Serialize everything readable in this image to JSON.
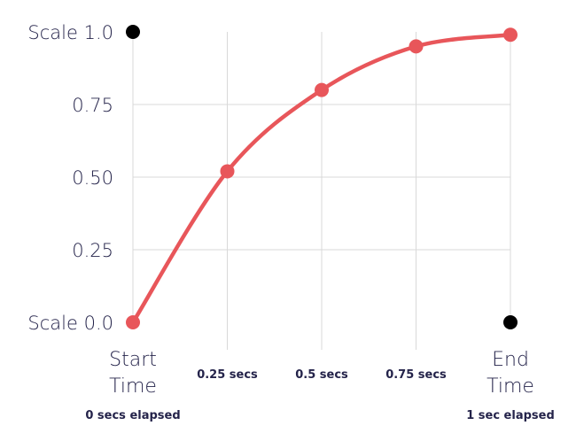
{
  "chart_data": {
    "type": "line",
    "x": [
      0,
      0.25,
      0.5,
      0.75,
      1.0
    ],
    "series": [
      {
        "values": [
          0.0,
          0.52,
          0.8,
          0.95,
          0.99
        ]
      }
    ],
    "y_ticks": [
      {
        "value": 1.0,
        "label": "Scale 1.0"
      },
      {
        "value": 0.75,
        "label": "0.75"
      },
      {
        "value": 0.5,
        "label": "0.50"
      },
      {
        "value": 0.25,
        "label": "0.25"
      },
      {
        "value": 0.0,
        "label": "Scale 0.0"
      }
    ],
    "x_ticks": [
      {
        "value": 0,
        "lines": [
          "Start",
          "Time"
        ],
        "sub": "0 secs elapsed"
      },
      {
        "value": 0.25,
        "lines": [
          "0.25 secs"
        ],
        "sub": ""
      },
      {
        "value": 0.5,
        "lines": [
          "0.5 secs"
        ],
        "sub": ""
      },
      {
        "value": 0.75,
        "lines": [
          "0.75 secs"
        ],
        "sub": ""
      },
      {
        "value": 1.0,
        "lines": [
          "End",
          "Time"
        ],
        "sub": "1 sec elapsed"
      }
    ],
    "reference_points": [
      {
        "x": 0,
        "y": 1.0
      },
      {
        "x": 1.0,
        "y": 0.0
      }
    ],
    "xlim": [
      0,
      1
    ],
    "ylim": [
      0,
      1
    ],
    "grid": true,
    "colors": {
      "line": "#e8565a",
      "reference": "#000000",
      "grid": "#d9d9d9",
      "text": "#24234a"
    }
  }
}
